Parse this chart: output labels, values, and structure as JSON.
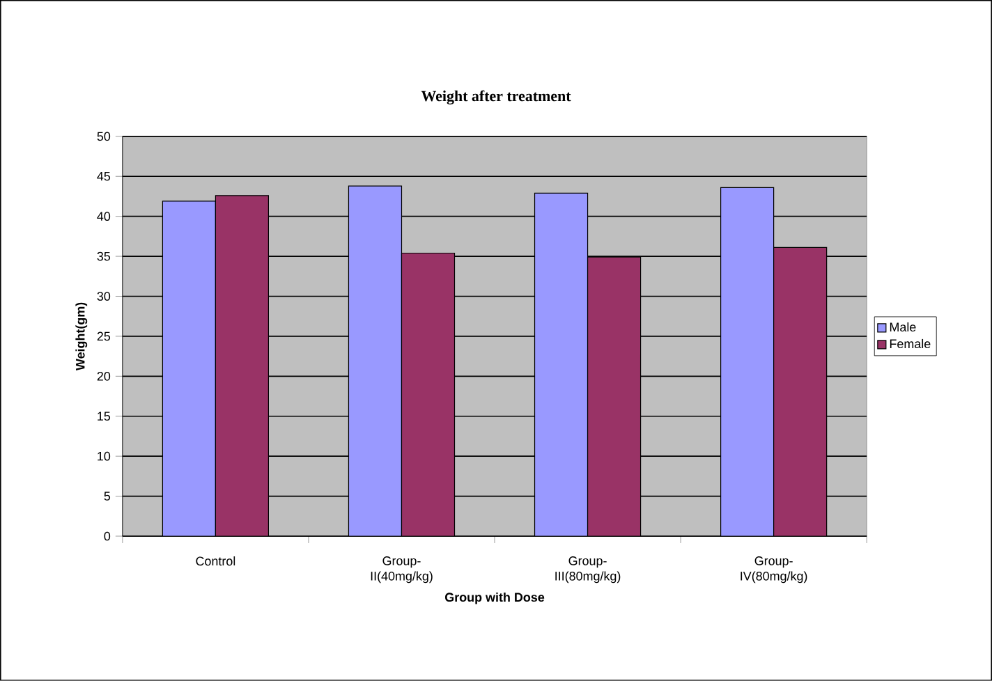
{
  "chart_data": {
    "type": "bar",
    "title": "Weight after treatment",
    "xlabel": "Group with Dose",
    "ylabel": "Weight(gm)",
    "categories": [
      "Control",
      "Group-II(40mg/kg)",
      "Group-III(80mg/kg)",
      "Group-IV(80mg/kg)"
    ],
    "series": [
      {
        "name": "Male",
        "color": "#9999ff",
        "values": [
          41.9,
          43.8,
          42.9,
          43.6
        ]
      },
      {
        "name": "Female",
        "color": "#993366",
        "values": [
          42.6,
          35.4,
          34.9,
          36.1
        ]
      }
    ],
    "ylim": [
      0,
      50
    ],
    "yticks": [
      0,
      5,
      10,
      15,
      20,
      25,
      30,
      35,
      40,
      45,
      50
    ],
    "grid": "y",
    "legend": "right"
  }
}
